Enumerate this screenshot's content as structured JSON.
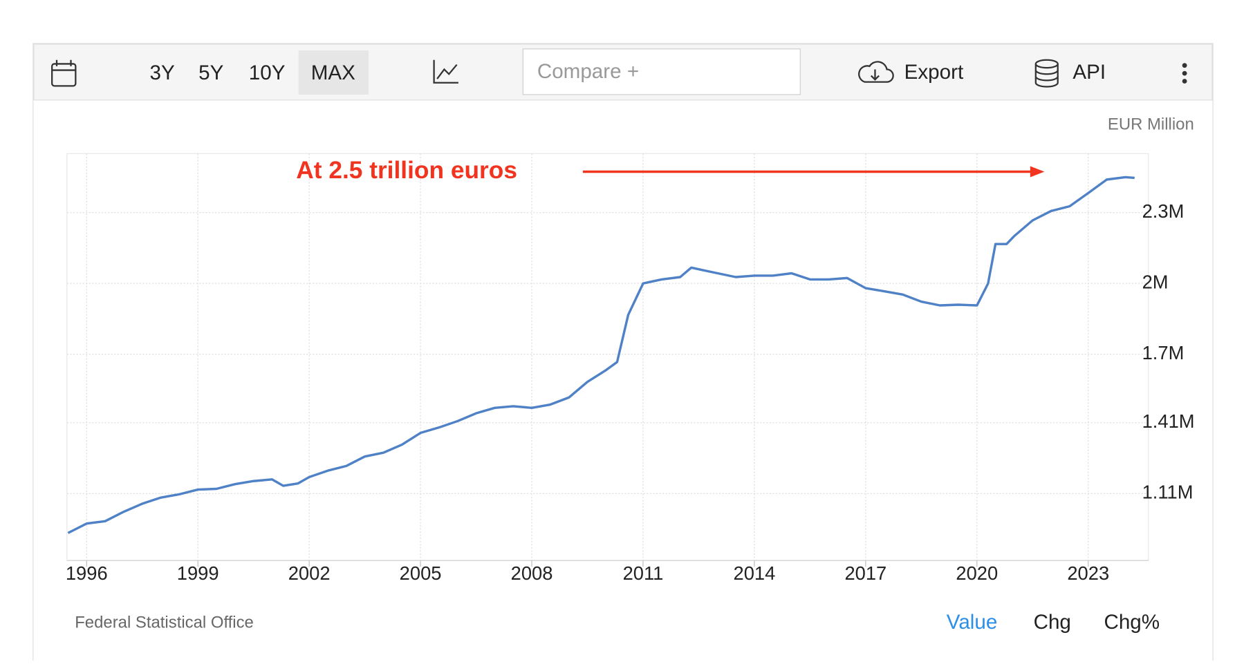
{
  "toolbar": {
    "ranges": [
      "3Y",
      "5Y",
      "10Y",
      "MAX"
    ],
    "compare_placeholder": "Compare +",
    "export": "Export",
    "api": "API"
  },
  "chart_data": {
    "type": "line",
    "unit_label": "EUR Million",
    "annotation": "At 2.5 trillion euros",
    "color": "#4f81c7",
    "grid": true,
    "x": [
      1995.5,
      1996,
      1996.5,
      1997,
      1997.5,
      1998,
      1998.5,
      1999,
      1999.5,
      2000,
      2000.5,
      2001,
      2001.3,
      2001.7,
      2002,
      2002.5,
      2003,
      2003.5,
      2004,
      2004.5,
      2005,
      2005.5,
      2006,
      2006.5,
      2007,
      2007.5,
      2008,
      2008.5,
      2009,
      2009.5,
      2010,
      2010.3,
      2010.6,
      2011,
      2011.5,
      2012,
      2012.3,
      2012.8,
      2013.5,
      2014,
      2014.5,
      2015,
      2015.5,
      2016,
      2016.5,
      2017,
      2017.5,
      2018,
      2018.5,
      2019,
      2019.5,
      2020,
      2020.3,
      2020.5,
      2020.8,
      2021,
      2021.5,
      2022,
      2022.5,
      2023,
      2023.5,
      2024,
      2024.25
    ],
    "values": [
      943000,
      983000,
      993000,
      1033000,
      1067000,
      1093000,
      1107000,
      1127000,
      1130000,
      1150000,
      1163000,
      1170000,
      1143000,
      1153000,
      1180000,
      1207000,
      1227000,
      1267000,
      1283000,
      1317000,
      1367000,
      1390000,
      1417000,
      1450000,
      1473000,
      1480000,
      1473000,
      1487000,
      1517000,
      1583000,
      1633000,
      1667000,
      1867000,
      2000000,
      2017000,
      2027000,
      2067000,
      2050000,
      2027000,
      2033000,
      2033000,
      2043000,
      2017000,
      2017000,
      2023000,
      1980000,
      1967000,
      1953000,
      1923000,
      1907000,
      1910000,
      1907000,
      2000000,
      2167000,
      2167000,
      2200000,
      2267000,
      2307000,
      2327000,
      2383000,
      2440000,
      2450000,
      2447000
    ],
    "xlim": [
      1995.47,
      2024.26
    ],
    "xticks": [
      1996,
      1999,
      2002,
      2005,
      2008,
      2011,
      2014,
      2017,
      2020,
      2023
    ],
    "ylim": [
      826667,
      2550000
    ],
    "yticks": [
      {
        "value": 1110000,
        "label": "1.11M"
      },
      {
        "value": 1410000,
        "label": "1.41M"
      },
      {
        "value": 1700000,
        "label": "1.7M"
      },
      {
        "value": 2000000,
        "label": "2M"
      },
      {
        "value": 2300000,
        "label": "2.3M"
      }
    ]
  },
  "footer": {
    "source": "Federal Statistical Office",
    "views": [
      "Value",
      "Chg",
      "Chg%"
    ]
  }
}
